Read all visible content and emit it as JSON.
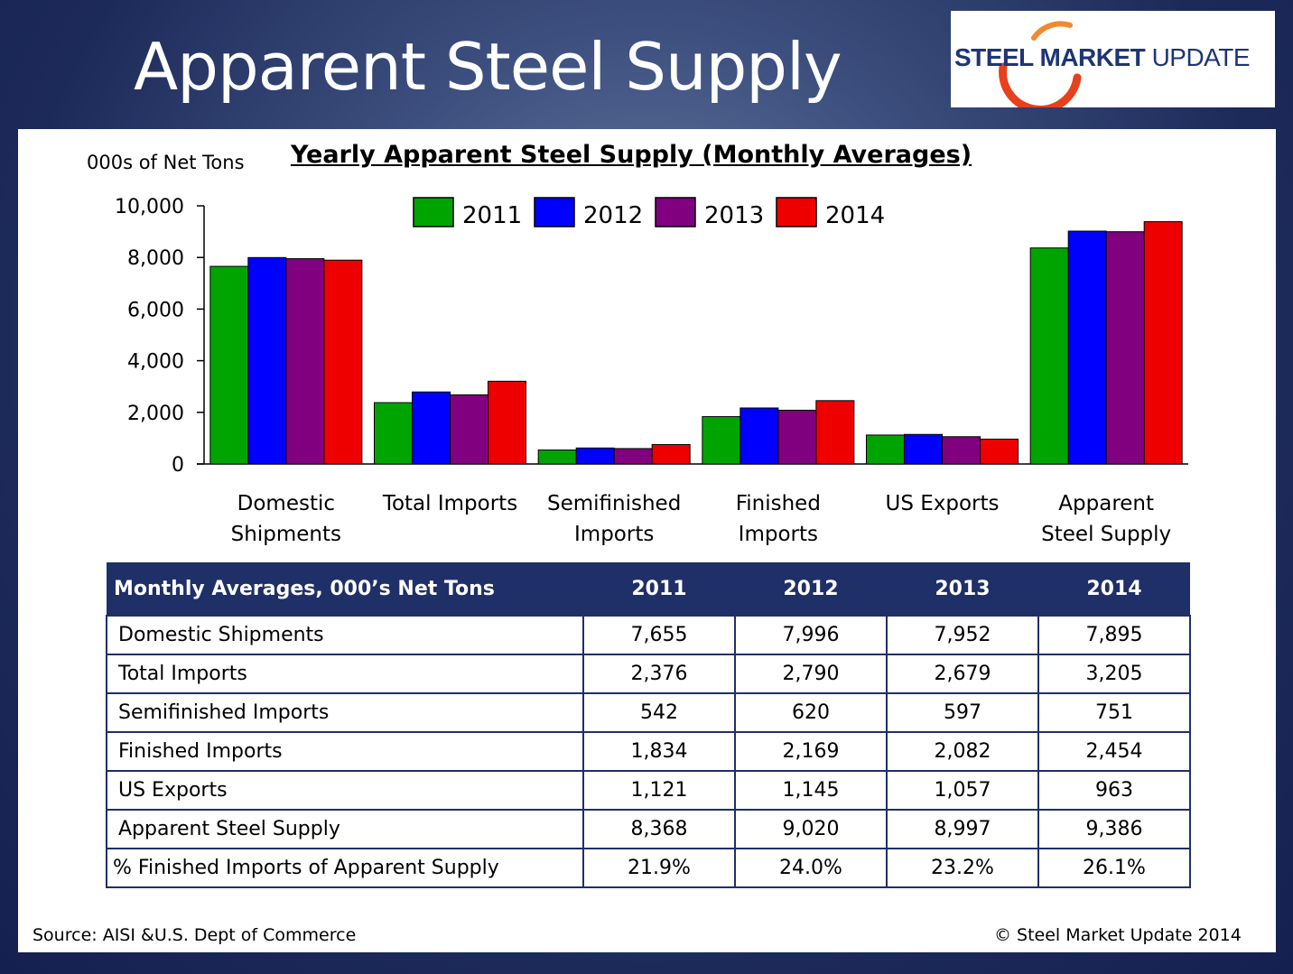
{
  "slide": {
    "title": "Apparent Steel Supply",
    "logo": {
      "part1": "STEEL ",
      "part2": "MARKET ",
      "part3": "UPDATE"
    }
  },
  "colors": {
    "s2011": "#00a400",
    "s2012": "#0000ff",
    "s2013": "#800080",
    "s2014": "#ee0000",
    "table_header": "#1f2f68",
    "logo_arc": "#e8401c"
  },
  "chart_data": {
    "type": "bar",
    "title": "Yearly Apparent Steel Supply (Monthly Averages)",
    "ylabel": "000s of Net Tons",
    "xlabel": "",
    "ylim": [
      0,
      10000
    ],
    "yticks": [
      "0",
      "2,000",
      "4,000",
      "6,000",
      "8,000",
      "10,000"
    ],
    "ytick_values": [
      0,
      2000,
      4000,
      6000,
      8000,
      10000
    ],
    "legend_position": "top-center",
    "grid": false,
    "categories": [
      [
        "Domestic",
        "Shipments"
      ],
      [
        "Total Imports"
      ],
      [
        "Semifinished",
        "Imports"
      ],
      [
        "Finished",
        "Imports"
      ],
      [
        "US Exports"
      ],
      [
        "Apparent",
        "Steel Supply"
      ]
    ],
    "series": [
      {
        "name": "2011",
        "color": "#00a400",
        "values": [
          7655,
          2376,
          542,
          1834,
          1121,
          8368
        ]
      },
      {
        "name": "2012",
        "color": "#0000ff",
        "values": [
          7996,
          2790,
          620,
          2169,
          1145,
          9020
        ]
      },
      {
        "name": "2013",
        "color": "#800080",
        "values": [
          7952,
          2679,
          597,
          2082,
          1057,
          8997
        ]
      },
      {
        "name": "2014",
        "color": "#ee0000",
        "values": [
          7895,
          3205,
          751,
          2454,
          963,
          9386
        ]
      }
    ]
  },
  "table": {
    "header": [
      "Monthly Averages, 000’s Net Tons",
      "2011",
      "2012",
      "2013",
      "2014"
    ],
    "rows": [
      [
        "Domestic Shipments",
        "7,655",
        "7,996",
        "7,952",
        "7,895"
      ],
      [
        "Total Imports",
        "2,376",
        "2,790",
        "2,679",
        "3,205"
      ],
      [
        "Semifinished Imports",
        "542",
        "620",
        "597",
        "751"
      ],
      [
        "Finished Imports",
        "1,834",
        "2,169",
        "2,082",
        "2,454"
      ],
      [
        "US Exports",
        "1,121",
        "1,145",
        "1,057",
        "963"
      ],
      [
        "Apparent Steel Supply",
        "8,368",
        "9,020",
        "8,997",
        "9,386"
      ],
      [
        "% Finished Imports of Apparent Supply",
        "21.9%",
        "24.0%",
        "23.2%",
        "26.1%"
      ]
    ]
  },
  "footer": {
    "source": "Source:  AISI &U.S. Dept of Commerce",
    "copyright": "©    Steel Market Update 2014"
  }
}
